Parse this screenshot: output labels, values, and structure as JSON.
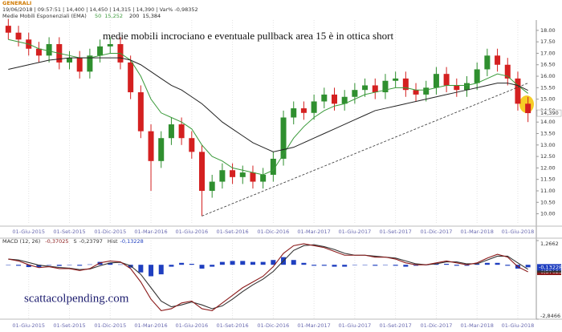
{
  "header": {
    "symbol": "GENERALI",
    "info": "19/06/2018 | 09:57:51 | 14,400 | 14,450 | 14,315 | 14,390 | Var% -0,98352",
    "ema_title": "Medie Mobili Esponenziali (EMA)"
  },
  "chart_data": [
    {
      "type": "candlestick",
      "annotation": "medie mobili incrociano e eventuale pullback area 15 è in ottica short",
      "categories": [
        null,
        null,
        "01-Giu-2015",
        null,
        null,
        null,
        "01-Set-2015",
        null,
        null,
        null,
        "01-Dic-2015",
        null,
        null,
        null,
        "01-Mar-2016",
        null,
        null,
        null,
        "01-Giu-2016",
        null,
        null,
        null,
        "01-Set-2016",
        null,
        null,
        null,
        "01-Dic-2016",
        null,
        null,
        null,
        "01-Mar-2017",
        null,
        null,
        null,
        "01-Giu-2017",
        null,
        null,
        null,
        "01-Set-2017",
        null,
        null,
        null,
        "01-Dic-2017",
        null,
        null,
        null,
        "01-Mar-2018",
        null,
        null,
        null,
        "01-Giu-2018",
        null
      ],
      "open": [
        18.2,
        17.9,
        17.6,
        17.2,
        16.9,
        17.4,
        16.6,
        16.8,
        16.2,
        16.9,
        17.3,
        17.4,
        16.6,
        15.3,
        13.6,
        12.3,
        13.3,
        13.9,
        13.3,
        12.7,
        11.0,
        11.4,
        11.9,
        11.6,
        11.8,
        11.4,
        11.7,
        12.4,
        14.2,
        14.6,
        14.4,
        14.9,
        15.2,
        14.8,
        15.1,
        15.4,
        15.6,
        15.3,
        15.8,
        15.9,
        15.4,
        15.2,
        15.5,
        16.1,
        15.6,
        15.4,
        15.7,
        16.3,
        16.9,
        16.5,
        15.9,
        14.8
      ],
      "high": [
        18.5,
        18.2,
        17.9,
        17.5,
        17.7,
        17.7,
        17.1,
        17.1,
        17.2,
        17.6,
        17.7,
        17.7,
        16.9,
        15.6,
        13.9,
        13.6,
        14.2,
        14.2,
        13.6,
        13.0,
        11.7,
        12.2,
        12.2,
        12.1,
        12.1,
        12.0,
        12.7,
        14.5,
        14.9,
        14.9,
        15.2,
        15.5,
        15.5,
        15.4,
        15.7,
        15.9,
        15.9,
        16.1,
        16.2,
        16.2,
        15.7,
        15.8,
        16.4,
        16.4,
        15.9,
        16.0,
        16.6,
        17.2,
        17.2,
        16.8,
        16.2,
        15.1
      ],
      "low": [
        17.6,
        17.3,
        16.9,
        16.6,
        16.6,
        16.3,
        16.3,
        15.9,
        15.9,
        16.6,
        17.0,
        16.3,
        15.0,
        13.3,
        11.0,
        12.0,
        13.0,
        13.0,
        12.4,
        9.9,
        10.7,
        11.1,
        11.3,
        11.3,
        11.1,
        11.1,
        11.4,
        12.1,
        13.9,
        14.1,
        14.1,
        14.6,
        14.5,
        14.5,
        14.8,
        15.1,
        15.0,
        15.0,
        15.5,
        15.1,
        14.9,
        14.9,
        15.2,
        15.3,
        15.1,
        15.1,
        15.4,
        16.0,
        16.2,
        15.6,
        14.5,
        14.0
      ],
      "close": [
        17.9,
        17.6,
        17.2,
        16.9,
        17.4,
        16.6,
        16.8,
        16.2,
        16.9,
        17.3,
        17.4,
        16.6,
        15.3,
        13.6,
        12.3,
        13.3,
        13.9,
        13.3,
        12.7,
        11.0,
        11.4,
        11.9,
        11.6,
        11.8,
        11.4,
        11.7,
        12.4,
        14.2,
        14.6,
        14.4,
        14.9,
        15.2,
        14.8,
        15.1,
        15.4,
        15.6,
        15.3,
        15.8,
        15.9,
        15.4,
        15.2,
        15.5,
        16.1,
        15.6,
        15.4,
        15.7,
        16.3,
        16.9,
        16.5,
        15.9,
        14.8,
        14.39
      ],
      "up_color": "#2f8f2f",
      "down_color": "#d42020",
      "series": [
        {
          "name": "50",
          "color": "#3a9a3a",
          "last_label": "15,252",
          "values": [
            17.6,
            17.5,
            17.4,
            17.2,
            17.1,
            17.0,
            16.9,
            16.8,
            16.8,
            16.9,
            17.0,
            17.0,
            16.7,
            16.0,
            15.0,
            14.4,
            14.2,
            14.0,
            13.7,
            13.0,
            12.5,
            12.3,
            12.0,
            11.9,
            11.8,
            11.7,
            11.9,
            12.6,
            13.3,
            13.8,
            14.2,
            14.5,
            14.7,
            14.8,
            15.0,
            15.2,
            15.3,
            15.4,
            15.5,
            15.5,
            15.4,
            15.4,
            15.5,
            15.6,
            15.6,
            15.6,
            15.7,
            15.9,
            16.1,
            16.0,
            15.6,
            15.252
          ]
        },
        {
          "name": "200",
          "color": "#222222",
          "last_label": "15,384",
          "values": [
            16.3,
            16.4,
            16.5,
            16.6,
            16.7,
            16.75,
            16.8,
            16.8,
            16.8,
            16.8,
            16.8,
            16.8,
            16.7,
            16.5,
            16.2,
            15.9,
            15.6,
            15.4,
            15.1,
            14.8,
            14.4,
            14.0,
            13.7,
            13.4,
            13.1,
            12.9,
            12.7,
            12.8,
            12.9,
            13.1,
            13.3,
            13.5,
            13.7,
            13.9,
            14.1,
            14.3,
            14.5,
            14.6,
            14.7,
            14.8,
            14.9,
            15.0,
            15.1,
            15.2,
            15.3,
            15.4,
            15.5,
            15.6,
            15.7,
            15.7,
            15.6,
            15.384
          ]
        }
      ],
      "trendline": {
        "x": [
          19,
          51
        ],
        "y": [
          9.9,
          15.7
        ]
      },
      "price_marker": {
        "value": 14.39,
        "label": "14,390"
      },
      "ylim": [
        9.6,
        18.45
      ],
      "yticks": [
        {
          "value": 10,
          "label": "10.00"
        },
        {
          "value": 10.5,
          "label": "10.50"
        },
        {
          "value": 11,
          "label": "11.00"
        },
        {
          "value": 11.5,
          "label": "11.50"
        },
        {
          "value": 12,
          "label": "12.00"
        },
        {
          "value": 12.5,
          "label": "12.50"
        },
        {
          "value": 13,
          "label": "13.00"
        },
        {
          "value": 13.5,
          "label": "13.50"
        },
        {
          "value": 14,
          "label": "14.00"
        },
        {
          "value": 14.5,
          "label": "14.50"
        },
        {
          "value": 15,
          "label": "15.00"
        },
        {
          "value": 15.5,
          "label": "15.50"
        },
        {
          "value": 16,
          "label": "16.00"
        },
        {
          "value": 16.5,
          "label": "16.50"
        },
        {
          "value": 17,
          "label": "17.00"
        },
        {
          "value": 17.5,
          "label": "17.50"
        },
        {
          "value": 18,
          "label": "18.00"
        }
      ]
    },
    {
      "type": "macd",
      "title": "MACD (12, 26)",
      "watermark": "scattacolpending.com",
      "values": [
        0.3,
        0.2,
        0.0,
        -0.15,
        -0.1,
        -0.2,
        -0.2,
        -0.3,
        -0.2,
        0.1,
        0.2,
        0.15,
        -0.2,
        -0.9,
        -1.8,
        -2.4,
        -2.3,
        -2.0,
        -1.9,
        -2.3,
        -2.4,
        -2.0,
        -1.6,
        -1.2,
        -0.9,
        -0.6,
        -0.1,
        0.6,
        1.0,
        1.1,
        1.0,
        0.9,
        0.7,
        0.5,
        0.5,
        0.5,
        0.4,
        0.4,
        0.3,
        0.1,
        0.0,
        0.0,
        0.1,
        0.2,
        0.1,
        0.0,
        0.1,
        0.35,
        0.55,
        0.4,
        -0.1,
        -0.37025
      ],
      "color": "#8b1a1a",
      "last_label": "-0,37025",
      "series": [
        {
          "name": "S",
          "color": "#333333",
          "last_label": "-0,23797",
          "values": [
            0.3,
            0.25,
            0.12,
            -0.02,
            -0.08,
            -0.14,
            -0.18,
            -0.25,
            -0.22,
            -0.05,
            0.1,
            0.13,
            -0.05,
            -0.5,
            -1.2,
            -1.9,
            -2.2,
            -2.1,
            -1.95,
            -2.1,
            -2.3,
            -2.15,
            -1.8,
            -1.4,
            -1.05,
            -0.75,
            -0.35,
            0.2,
            0.75,
            1.0,
            1.05,
            0.95,
            0.8,
            0.6,
            0.5,
            0.5,
            0.45,
            0.4,
            0.35,
            0.2,
            0.05,
            0.0,
            0.05,
            0.15,
            0.15,
            0.05,
            0.05,
            0.25,
            0.45,
            0.45,
            0.1,
            -0.23797
          ]
        },
        {
          "name": "Hist",
          "color": "#1f3fc0",
          "last_label": "-0,13228",
          "values": [
            0.0,
            -0.05,
            -0.12,
            -0.13,
            -0.02,
            -0.06,
            -0.02,
            -0.05,
            0.02,
            0.15,
            0.1,
            0.02,
            -0.15,
            -0.4,
            -0.6,
            -0.5,
            -0.1,
            0.1,
            0.05,
            -0.2,
            -0.1,
            0.15,
            0.2,
            0.2,
            0.15,
            0.15,
            0.25,
            0.4,
            0.25,
            0.1,
            -0.05,
            -0.05,
            -0.1,
            -0.1,
            0.0,
            0.0,
            -0.05,
            0.0,
            -0.05,
            -0.1,
            -0.05,
            0.0,
            0.05,
            0.05,
            -0.05,
            -0.05,
            0.05,
            0.1,
            0.1,
            -0.05,
            -0.2,
            -0.13228
          ]
        }
      ],
      "ylim": [
        -2.8466,
        1.2662
      ],
      "yticks": [
        {
          "value": 1.2662,
          "label": "1,2662"
        },
        {
          "value": -2.8466,
          "label": "-2,8466"
        }
      ]
    }
  ]
}
